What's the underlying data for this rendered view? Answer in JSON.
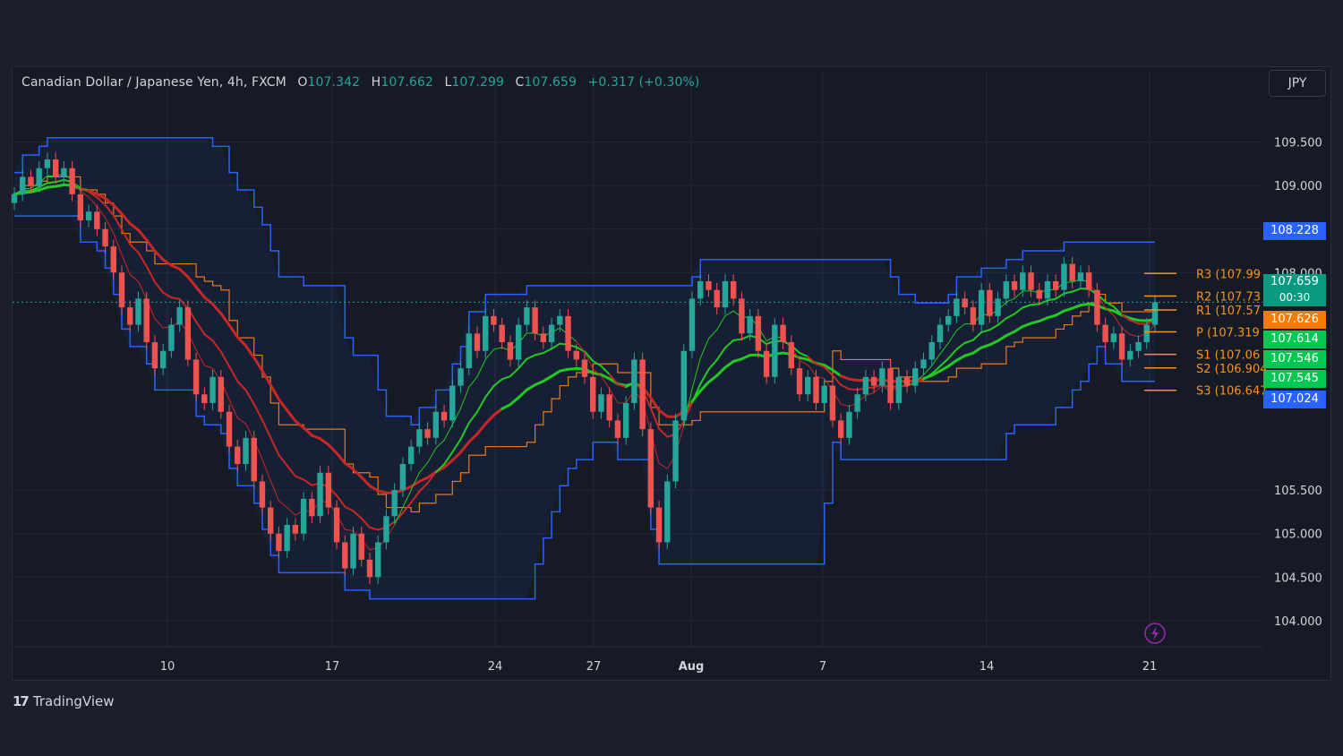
{
  "header": {
    "symbol": "Canadian Dollar / Japanese Yen, 4h, FXCM",
    "open_key": "O",
    "open": "107.342",
    "high_key": "H",
    "high": "107.662",
    "low_key": "L",
    "low": "107.299",
    "close_key": "C",
    "close": "107.659",
    "change": "+0.317 (+0.30%)"
  },
  "currency": "JPY",
  "brand": {
    "name": "TradingView",
    "mark": "17"
  },
  "colors": {
    "up": "#26a69a",
    "down": "#ef5350",
    "channel": "#2962ff",
    "ema_green": "#22c922",
    "ema_red": "#c62828",
    "pivot": "#f7931a",
    "background": "#161a25"
  },
  "price_tags": [
    {
      "label": "108.228",
      "bg": "#2962ff"
    },
    {
      "label": "107.659",
      "sub": "00:30",
      "bg": "#089981"
    },
    {
      "label": "107.626",
      "bg": "#f57c00"
    },
    {
      "label": "107.614",
      "bg": "#00c853"
    },
    {
      "label": "107.546",
      "bg": "#00c853"
    },
    {
      "label": "107.545",
      "bg": "#00c853"
    },
    {
      "label": "107.024",
      "bg": "#2962ff"
    }
  ],
  "chart_data": {
    "type": "candlestick",
    "title": "Canadian Dollar / Japanese Yen, 4h, FXCM",
    "ylim": [
      103.7,
      110.0
    ],
    "y_ticks": [
      "109.500",
      "109.000",
      "108.500",
      "108.000",
      "105.500",
      "105.000",
      "104.500",
      "104.000"
    ],
    "x_ticks": [
      "10",
      "17",
      "24",
      "27",
      "Aug",
      "7",
      "14",
      "21"
    ],
    "grid": true,
    "series_close": [
      108.9,
      109.1,
      109.0,
      109.2,
      109.3,
      109.1,
      109.2,
      108.9,
      108.6,
      108.7,
      108.5,
      108.3,
      108.0,
      107.6,
      107.4,
      107.7,
      107.2,
      106.9,
      107.1,
      107.4,
      107.6,
      107.0,
      106.6,
      106.5,
      106.8,
      106.4,
      106.0,
      105.8,
      106.1,
      105.6,
      105.3,
      105.0,
      104.8,
      105.1,
      105.0,
      105.4,
      105.2,
      105.7,
      105.3,
      104.9,
      104.6,
      105.0,
      104.7,
      104.5,
      104.9,
      105.2,
      105.5,
      105.8,
      106.0,
      106.2,
      106.1,
      106.4,
      106.3,
      106.7,
      106.9,
      107.3,
      107.1,
      107.5,
      107.4,
      107.2,
      107.0,
      107.4,
      107.6,
      107.3,
      107.2,
      107.4,
      107.5,
      107.1,
      107.0,
      106.8,
      106.4,
      106.6,
      106.3,
      106.1,
      106.5,
      107.0,
      106.2,
      105.3,
      104.9,
      105.6,
      106.3,
      107.1,
      107.7,
      107.9,
      107.8,
      107.6,
      107.9,
      107.7,
      107.3,
      107.5,
      107.1,
      106.8,
      107.4,
      107.2,
      106.9,
      106.6,
      106.8,
      106.5,
      106.7,
      106.3,
      106.1,
      106.4,
      106.6,
      106.8,
      106.7,
      106.9,
      106.5,
      106.8,
      106.7,
      106.9,
      107.0,
      107.2,
      107.4,
      107.5,
      107.7,
      107.6,
      107.4,
      107.8,
      107.5,
      107.7,
      107.9,
      107.8,
      108.0,
      107.8,
      107.7,
      107.9,
      107.8,
      108.1,
      107.9,
      108.0,
      107.8,
      107.4,
      107.2,
      107.3,
      107.0,
      107.1,
      107.2,
      107.4,
      107.66
    ],
    "channel_upper_label": "108.228",
    "channel_lower_label": "107.024",
    "pivots": [
      {
        "name": "R3",
        "label": "R3 (107.99",
        "value": 107.99
      },
      {
        "name": "R2",
        "label": "R2 (107.73",
        "value": 107.73
      },
      {
        "name": "R1",
        "label": "R1 (107.57",
        "value": 107.57
      },
      {
        "name": "P",
        "label": "P (107.319",
        "value": 107.319
      },
      {
        "name": "S1",
        "label": "S1 (107.06",
        "value": 107.06
      },
      {
        "name": "S2",
        "label": "S2 (106.904",
        "value": 106.904
      },
      {
        "name": "S3",
        "label": "S3 (106.647",
        "value": 106.647
      }
    ]
  }
}
